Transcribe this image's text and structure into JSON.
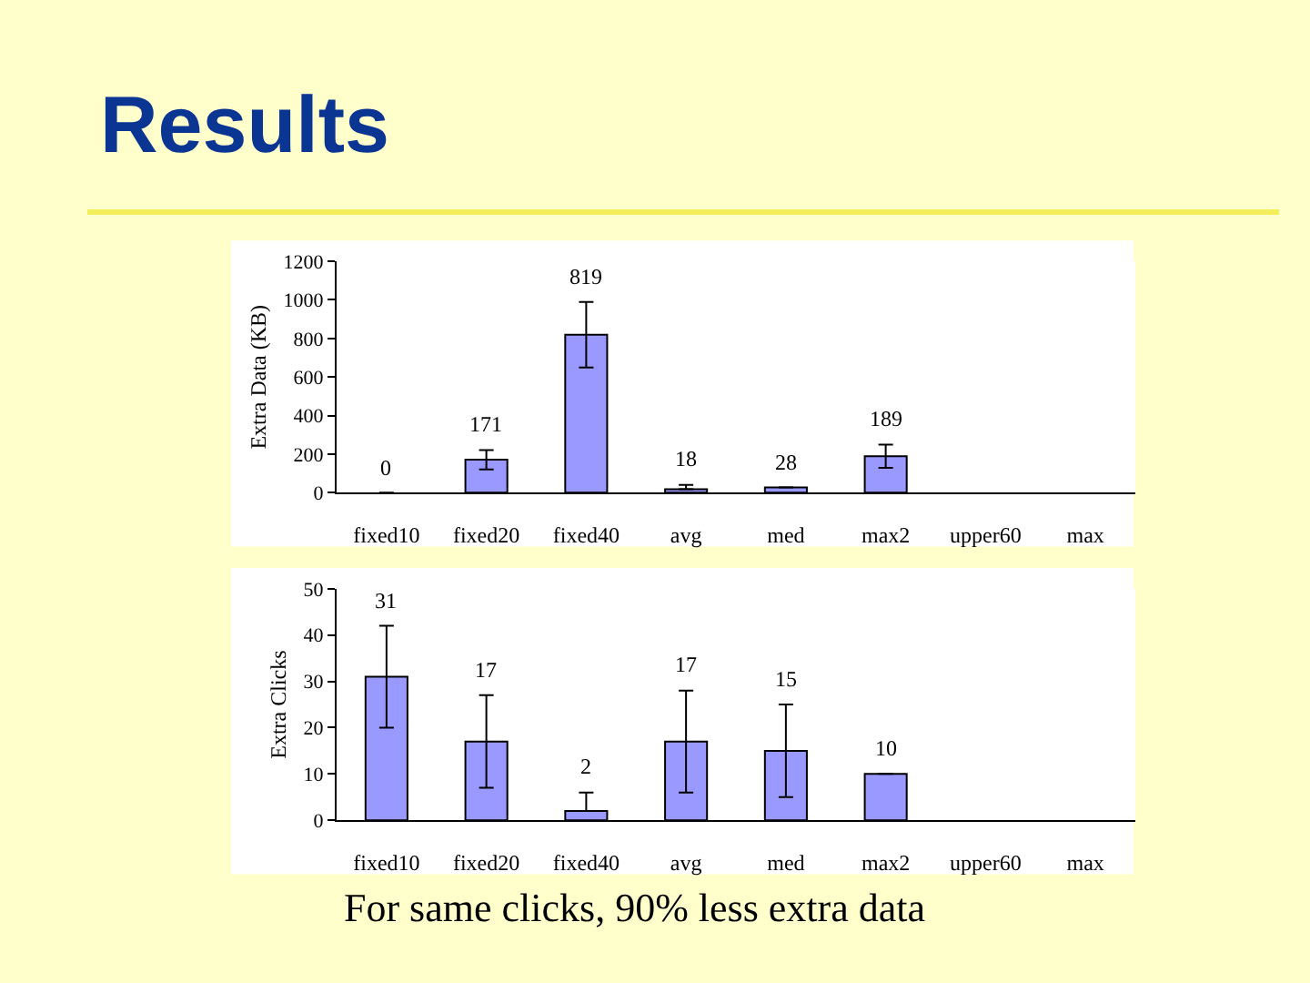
{
  "chart_data": [
    {
      "type": "bar",
      "title": "Results",
      "ylabel": "Extra Data (KB)",
      "categories": [
        "fixed10",
        "fixed20",
        "fixed40",
        "avg",
        "med",
        "max2",
        "upper60",
        "max"
      ],
      "values": [
        0,
        171,
        819,
        18,
        28,
        189,
        null,
        null
      ],
      "errors": [
        null,
        50,
        170,
        [
          18,
          40
        ],
        null,
        60,
        null,
        null
      ],
      "color": "#9999ff",
      "ylim": [
        0,
        1200
      ],
      "yticks": [
        0,
        200,
        400,
        600,
        800,
        1000,
        1200
      ],
      "data_labels": true
    },
    {
      "type": "bar",
      "ylabel": "Extra Clicks",
      "categories": [
        "fixed10",
        "fixed20",
        "fixed40",
        "avg",
        "med",
        "max2",
        "upper60",
        "max"
      ],
      "values": [
        31,
        17,
        2,
        17,
        15,
        10,
        null,
        null
      ],
      "errors": [
        11,
        10,
        [
          2,
          6
        ],
        11,
        10,
        null,
        null,
        null
      ],
      "color": "#9999ff",
      "ylim": [
        0,
        50
      ],
      "yticks": [
        0,
        10,
        20,
        30,
        40,
        50
      ],
      "data_labels": true,
      "annotations": [
        "For same clicks, 90% less extra data"
      ]
    }
  ]
}
